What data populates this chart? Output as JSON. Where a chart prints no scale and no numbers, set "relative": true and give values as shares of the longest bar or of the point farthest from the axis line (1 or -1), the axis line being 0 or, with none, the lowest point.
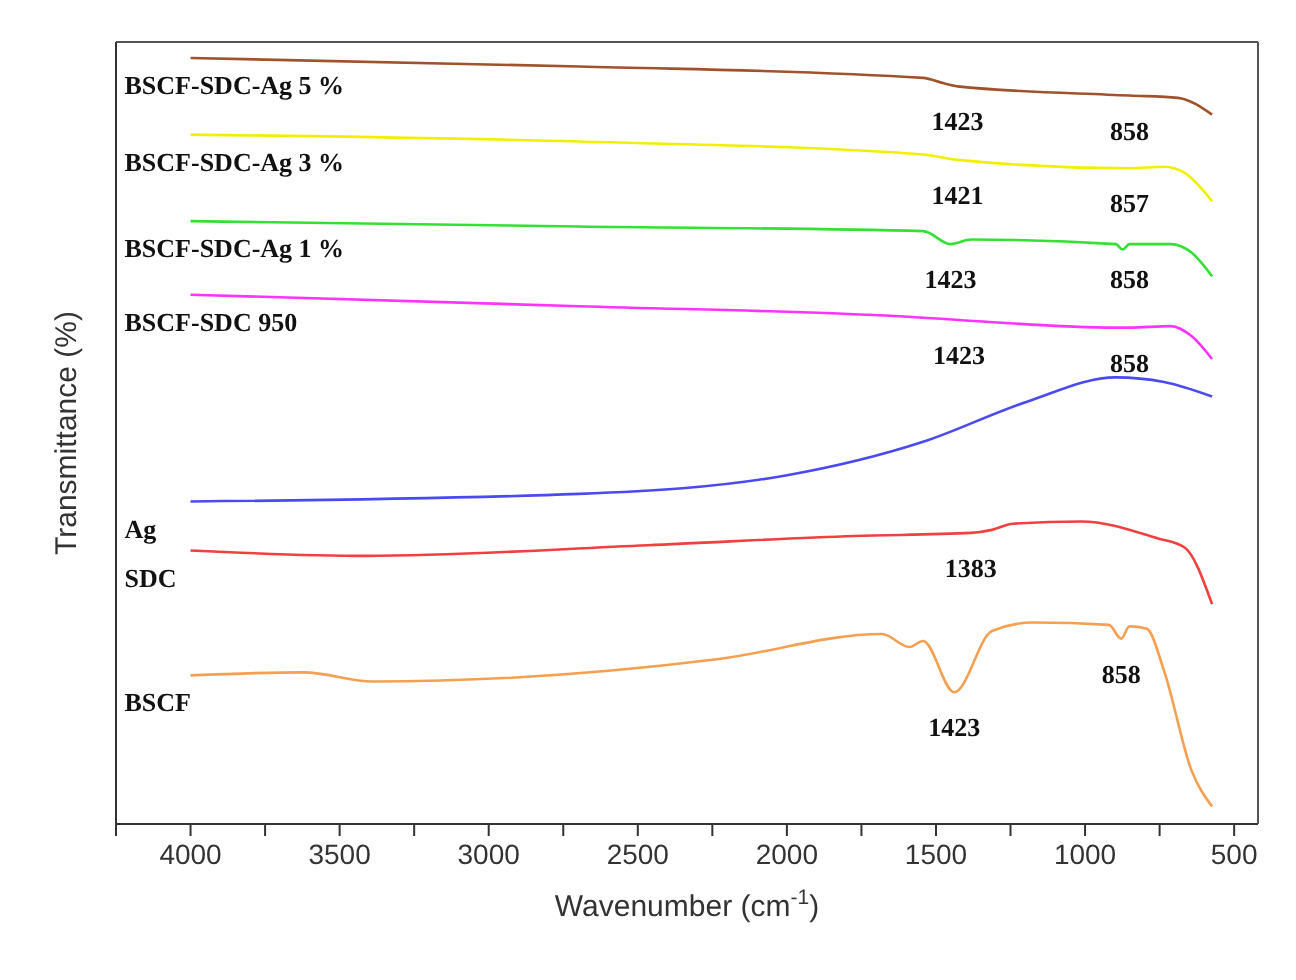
{
  "chart_data": {
    "type": "line",
    "relative": true,
    "xlabel": "Wavenumber (cm$^{-1}$)",
    "ylabel": "Transmittance (%)",
    "xlim": [
      4250,
      420
    ],
    "xticks": [
      {
        "value": 4250,
        "label": null
      },
      4000,
      {
        "value": 3750,
        "label": null
      },
      3500,
      {
        "value": 3250,
        "label": null
      },
      3000,
      {
        "value": 2750,
        "label": null
      },
      2500,
      {
        "value": 2250,
        "label": null
      },
      2000,
      {
        "value": 1750,
        "label": null
      },
      1500,
      {
        "value": 1250,
        "label": null
      },
      1000,
      {
        "value": 750,
        "label": null
      },
      500
    ],
    "legend": false,
    "marker": "none",
    "line_style": "solid",
    "series": [
      {
        "name": "BSCF-SDC-Ag 5 %",
        "color": "#a0522d",
        "x": [
          4000,
          2697,
          1543,
          1474,
          1428,
          851,
          689,
          574
        ],
        "values": [
          1.0,
          0.989,
          0.974,
          0.967,
          0.963,
          0.951,
          0.948,
          0.926
        ]
      },
      {
        "name": "BSCF-SDC-Ag 3 %",
        "color": "#f0f000",
        "x": [
          4000,
          2697,
          1543,
          1428,
          851,
          735,
          666,
          574
        ],
        "values": [
          0.9,
          0.891,
          0.874,
          0.867,
          0.856,
          0.858,
          0.85,
          0.813
        ]
      },
      {
        "name": "BSCF-SDC-Ag 1 %",
        "color": "#33e033",
        "x": [
          4000,
          2697,
          1543,
          1451,
          1382,
          897,
          874,
          851,
          713,
          643,
          574
        ],
        "values": [
          0.787,
          0.78,
          0.774,
          0.757,
          0.763,
          0.757,
          0.75,
          0.757,
          0.757,
          0.746,
          0.715
        ]
      },
      {
        "name": "BSCF-SDC 950",
        "color": "#ff33ff",
        "x": [
          4000,
          2697,
          1543,
          1423,
          897,
          851,
          713,
          643,
          574
        ],
        "values": [
          0.691,
          0.676,
          0.661,
          0.658,
          0.648,
          0.648,
          0.65,
          0.637,
          0.607
        ]
      },
      {
        "name": "Ag",
        "color": "#4a4af0",
        "x": [
          4000,
          2697,
          2004,
          1543,
          1197,
          897,
          735,
          574
        ],
        "values": [
          0.421,
          0.431,
          0.455,
          0.499,
          0.551,
          0.583,
          0.577,
          0.558
        ]
      },
      {
        "name": "SDC",
        "color": "#f04040",
        "x": [
          4000,
          3412,
          2466,
          1774,
          1383,
          1312,
          1243,
          1012,
          758,
          666,
          574
        ],
        "values": [
          0.357,
          0.35,
          0.364,
          0.376,
          0.38,
          0.384,
          0.392,
          0.395,
          0.373,
          0.361,
          0.287
        ]
      },
      {
        "name": "BSCF",
        "color": "#f5a050",
        "x": [
          4000,
          3619,
          3389,
          2235,
          1681,
          1589,
          1543,
          1439,
          1312,
          1174,
          920,
          879,
          851,
          793,
          735,
          643,
          574
        ],
        "values": [
          0.194,
          0.198,
          0.186,
          0.215,
          0.248,
          0.231,
          0.239,
          0.172,
          0.252,
          0.263,
          0.26,
          0.242,
          0.258,
          0.255,
          0.2,
          0.07,
          0.023
        ]
      }
    ],
    "annotations": [
      {
        "text": "1423",
        "x": 1428,
        "y": 0.963
      },
      {
        "text": "858",
        "x": 851,
        "y": 0.951
      },
      {
        "text": "1421",
        "x": 1428,
        "y": 0.867
      },
      {
        "text": "857",
        "x": 851,
        "y": 0.856
      },
      {
        "text": "1423",
        "x": 1451,
        "y": 0.757
      },
      {
        "text": "858",
        "x": 851,
        "y": 0.757
      },
      {
        "text": "1423",
        "x": 1423,
        "y": 0.658
      },
      {
        "text": "858",
        "x": 851,
        "y": 0.648
      },
      {
        "text": "1383",
        "x": 1383,
        "y": 0.38
      },
      {
        "text": "858",
        "x": 879,
        "y": 0.242
      },
      {
        "text": "1423",
        "x": 1439,
        "y": 0.172
      }
    ]
  }
}
